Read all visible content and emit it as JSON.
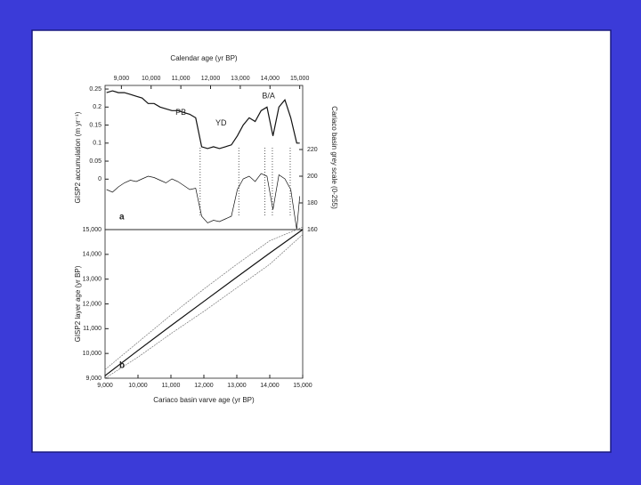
{
  "chart_data": [
    {
      "type": "line",
      "title": "Calendar age (yr BP)",
      "y_label": "GISP2 accumulation (m yr⁻¹)",
      "y2_label": "Cariaco basin grey scale (0-255)",
      "panel_label": "a",
      "annotations": [
        "PB",
        "YD",
        "B/A"
      ],
      "x": [
        8500,
        8700,
        8900,
        9100,
        9300,
        9500,
        9700,
        9900,
        10100,
        10300,
        10500,
        10700,
        10900,
        11100,
        11300,
        11500,
        11700,
        11900,
        12100,
        12300,
        12500,
        12700,
        12900,
        13100,
        13300,
        13500,
        13700,
        13900,
        14100,
        14300,
        14500,
        14700,
        14900,
        15000
      ],
      "series": [
        {
          "name": "GISP2 accumulation",
          "color": "#111111",
          "values": [
            0.24,
            0.245,
            0.24,
            0.24,
            0.235,
            0.23,
            0.225,
            0.21,
            0.21,
            0.2,
            0.195,
            0.19,
            0.19,
            0.185,
            0.18,
            0.17,
            0.09,
            0.085,
            0.09,
            0.085,
            0.09,
            0.095,
            0.12,
            0.15,
            0.17,
            0.16,
            0.19,
            0.2,
            0.12,
            0.2,
            0.22,
            0.17,
            0.1,
            0.1
          ]
        },
        {
          "name": "Cariaco grey scale",
          "color": "#111111",
          "axis": "y2",
          "values": [
            190,
            188,
            192,
            195,
            197,
            196,
            198,
            200,
            199,
            197,
            195,
            198,
            196,
            193,
            190,
            191,
            170,
            165,
            167,
            166,
            168,
            170,
            190,
            198,
            200,
            196,
            202,
            200,
            175,
            201,
            198,
            190,
            160,
            185
          ]
        }
      ],
      "events": [
        11650,
        12950,
        13830,
        14080,
        14680
      ],
      "xlim": [
        8450,
        15100
      ],
      "xticks": [
        {
          "value": 9000,
          "label": "9,000"
        },
        {
          "value": 10000,
          "label": "10,000"
        },
        {
          "value": 11000,
          "label": "11,000"
        },
        {
          "value": 12000,
          "label": "12,000"
        },
        {
          "value": 13000,
          "label": "13,000"
        },
        {
          "value": 14000,
          "label": "14,000"
        },
        {
          "value": 15000,
          "label": "15,000"
        }
      ],
      "ylim": [
        -0.14,
        0.26
      ],
      "yticks": [
        0,
        0.05,
        0.1,
        0.15,
        0.2,
        0.25
      ],
      "y2lim": [
        160,
        268
      ],
      "y2ticks": [
        160,
        180,
        200,
        220
      ]
    },
    {
      "type": "line",
      "x_label": "Cariaco basin varve age (yr BP)",
      "y_label": "GISP2 layer age (yr BP)",
      "panel_label": "b",
      "x": [
        9000,
        10000,
        11000,
        12000,
        13000,
        14000,
        15000
      ],
      "series": [
        {
          "name": "GISP2 vs Cariaco",
          "color": "#111111",
          "values": [
            9100,
            10120,
            11120,
            12100,
            13080,
            14050,
            15000
          ]
        },
        {
          "name": "Upper bound",
          "color": "#777777",
          "values": [
            9350,
            10450,
            11550,
            12600,
            13600,
            14550,
            15100
          ]
        },
        {
          "name": "Lower bound",
          "color": "#777777",
          "values": [
            9000,
            9850,
            10800,
            11700,
            12650,
            13600,
            14800
          ]
        }
      ],
      "xlim": [
        9000,
        15000
      ],
      "xticks": [
        {
          "value": 9000,
          "label": "9,000"
        },
        {
          "value": 10000,
          "label": "10,000"
        },
        {
          "value": 11000,
          "label": "11,000"
        },
        {
          "value": 12000,
          "label": "12,000"
        },
        {
          "value": 13000,
          "label": "13,000"
        },
        {
          "value": 14000,
          "label": "14,000"
        },
        {
          "value": 15000,
          "label": "15,000"
        }
      ],
      "ylim": [
        9000,
        15000
      ],
      "yticks": [
        {
          "value": 9000,
          "label": "9,000"
        },
        {
          "value": 10000,
          "label": "10,000"
        },
        {
          "value": 11000,
          "label": "11,000"
        },
        {
          "value": 12000,
          "label": "12,000"
        },
        {
          "value": 13000,
          "label": "13,000"
        },
        {
          "value": 14000,
          "label": "14,000"
        },
        {
          "value": 15000,
          "label": "15,000"
        }
      ]
    }
  ]
}
